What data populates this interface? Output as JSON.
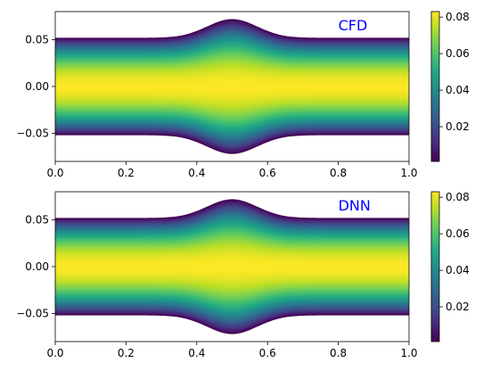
{
  "chart_data": [
    {
      "type": "heatmap",
      "title": "",
      "annotation": "CFD",
      "annotation_color": "#0000ff",
      "xlabel": "",
      "ylabel": "",
      "xlim": [
        0.0,
        1.0
      ],
      "ylim": [
        -0.08,
        0.08
      ],
      "xticks": [
        0.0,
        0.2,
        0.4,
        0.6,
        0.8,
        1.0
      ],
      "xtick_labels": [
        "0.0",
        "0.2",
        "0.4",
        "0.6",
        "0.8",
        "1.0"
      ],
      "yticks": [
        -0.05,
        0.0,
        0.05
      ],
      "ytick_labels": [
        "−0.05",
        "0.00",
        "0.05"
      ],
      "field": {
        "wall_half_height_end": 0.052,
        "wall_bulge_amplitude": 0.02,
        "bulge_center_x": 0.5,
        "bulge_width": 0.1,
        "value_max": 0.083,
        "value_min": 0.001
      },
      "colorbar": {
        "colormap": "viridis",
        "range": [
          0.001,
          0.083
        ],
        "ticks": [
          0.02,
          0.04,
          0.06,
          0.08
        ],
        "tick_labels": [
          "0.02",
          "0.04",
          "0.06",
          "0.08"
        ]
      }
    },
    {
      "type": "heatmap",
      "title": "",
      "annotation": "DNN",
      "annotation_color": "#0000ff",
      "xlabel": "",
      "ylabel": "",
      "xlim": [
        0.0,
        1.0
      ],
      "ylim": [
        -0.08,
        0.08
      ],
      "xticks": [
        0.0,
        0.2,
        0.4,
        0.6,
        0.8,
        1.0
      ],
      "xtick_labels": [
        "0.0",
        "0.2",
        "0.4",
        "0.6",
        "0.8",
        "1.0"
      ],
      "yticks": [
        -0.05,
        0.0,
        0.05
      ],
      "ytick_labels": [
        "−0.05",
        "0.00",
        "0.05"
      ],
      "field": {
        "wall_half_height_end": 0.052,
        "wall_bulge_amplitude": 0.02,
        "bulge_center_x": 0.5,
        "bulge_width": 0.1,
        "value_max": 0.083,
        "value_min": 0.001
      },
      "colorbar": {
        "colormap": "viridis",
        "range": [
          0.001,
          0.083
        ],
        "ticks": [
          0.02,
          0.04,
          0.06,
          0.08
        ],
        "tick_labels": [
          "0.02",
          "0.04",
          "0.06",
          "0.08"
        ]
      }
    }
  ]
}
